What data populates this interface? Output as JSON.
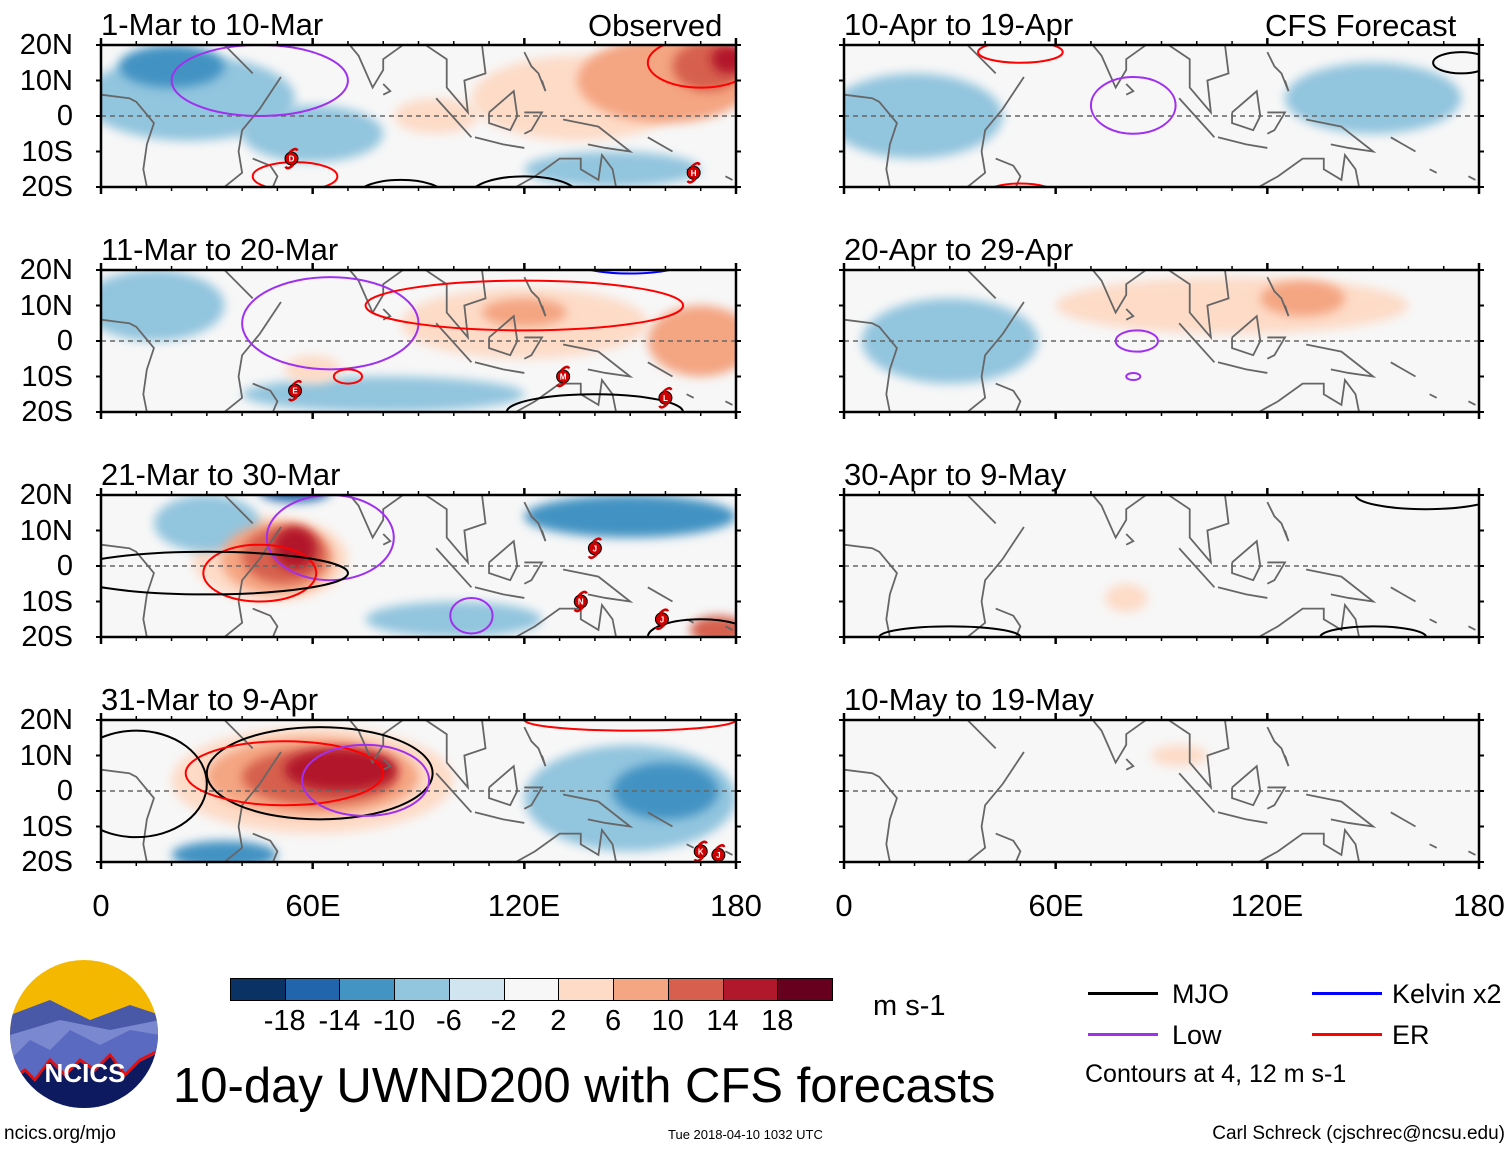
{
  "title": "10-day UWND200 with CFS forecasts",
  "url": "ncics.org/mjo",
  "timestamp": "Tue 2018-04-10 1032 UTC",
  "author": "Carl Schreck (cjschrec@ncsu.edu)",
  "logo_text": "NCICS",
  "observed_label": "Observed",
  "forecast_label": "CFS Forecast",
  "units": "m s-1",
  "contour_note": "Contours at 4, 12 m s-1",
  "colors": {
    "levels": [
      -18,
      -14,
      -10,
      -6,
      -2,
      2,
      6,
      10,
      14,
      18
    ],
    "fills": [
      "#0b3264",
      "#2166ac",
      "#4393c3",
      "#92c5de",
      "#d1e5f0",
      "#f7f7f7",
      "#fddbc7",
      "#f4a582",
      "#d6604d",
      "#b2182b",
      "#67001f"
    ],
    "mjo": "#000000",
    "low": "#a030f0",
    "er": "#ff0000",
    "kelvin": "#0000ff"
  },
  "colorbar_labels": [
    "-18",
    "-14",
    "-10",
    "-6",
    "-2",
    "2",
    "6",
    "10",
    "14",
    "18"
  ],
  "legend": [
    {
      "key": "mjo",
      "label": "MJO"
    },
    {
      "key": "kelvin",
      "label": "Kelvin x2"
    },
    {
      "key": "low",
      "label": "Low"
    },
    {
      "key": "er",
      "label": "ER"
    }
  ],
  "lat_labels": [
    "20N",
    "10N",
    "0",
    "10S",
    "20S"
  ],
  "lon_labels": [
    "0",
    "60E",
    "120E",
    "180"
  ],
  "chart_data": [
    {
      "type": "heatmap",
      "panel": "observed",
      "title": "1-Mar to 10-Mar",
      "anomalies": [
        [
          25,
          5,
          30,
          12,
          -6
        ],
        [
          20,
          14,
          15,
          6,
          -10
        ],
        [
          60,
          -5,
          20,
          8,
          -6
        ],
        [
          135,
          5,
          30,
          12,
          6
        ],
        [
          160,
          10,
          25,
          12,
          10
        ],
        [
          172,
          14,
          10,
          7,
          14
        ],
        [
          178,
          16,
          5,
          4,
          18
        ],
        [
          145,
          -15,
          25,
          5,
          -6
        ],
        [
          95,
          0,
          12,
          5,
          6
        ]
      ],
      "contours": [
        [
          "low",
          45,
          10,
          25,
          10
        ],
        [
          "er",
          170,
          15,
          15,
          7
        ],
        [
          "er",
          55,
          -17,
          12,
          4
        ],
        [
          "mjo",
          85,
          -22,
          12,
          4
        ],
        [
          "mjo",
          120,
          -22,
          15,
          5
        ]
      ],
      "storms": [
        [
          "D",
          54,
          -12
        ],
        [
          "H",
          168,
          -16
        ]
      ]
    },
    {
      "type": "heatmap",
      "panel": "observed",
      "title": "11-Mar to 20-Mar",
      "anomalies": [
        [
          15,
          10,
          20,
          10,
          -6
        ],
        [
          120,
          5,
          35,
          10,
          6
        ],
        [
          120,
          8,
          12,
          4,
          10
        ],
        [
          170,
          0,
          15,
          10,
          10
        ],
        [
          80,
          -15,
          40,
          5,
          -6
        ],
        [
          60,
          -8,
          8,
          4,
          6
        ]
      ],
      "contours": [
        [
          "low",
          65,
          5,
          25,
          13
        ],
        [
          "er",
          120,
          10,
          45,
          7
        ],
        [
          "er",
          70,
          -10,
          4,
          2
        ],
        [
          "kelvin",
          150,
          22,
          15,
          3
        ],
        [
          "mjo",
          140,
          -20,
          25,
          5
        ]
      ],
      "storms": [
        [
          "E",
          55,
          -14
        ],
        [
          "M",
          131,
          -10
        ],
        [
          "L",
          160,
          -16
        ]
      ]
    },
    {
      "type": "heatmap",
      "panel": "observed",
      "title": "21-Mar to 30-Mar",
      "anomalies": [
        [
          48,
          2,
          22,
          12,
          6
        ],
        [
          50,
          2,
          16,
          10,
          10
        ],
        [
          52,
          3,
          12,
          8,
          14
        ],
        [
          55,
          5,
          6,
          6,
          18
        ],
        [
          30,
          12,
          15,
          8,
          -6
        ],
        [
          55,
          21,
          10,
          3,
          -14
        ],
        [
          150,
          14,
          30,
          6,
          -10
        ],
        [
          100,
          -15,
          25,
          5,
          -6
        ],
        [
          175,
          -18,
          8,
          4,
          14
        ]
      ],
      "contours": [
        [
          "low",
          65,
          8,
          18,
          12
        ],
        [
          "er",
          45,
          -2,
          16,
          8
        ],
        [
          "mjo",
          30,
          -2,
          40,
          6
        ],
        [
          "low",
          105,
          -14,
          6,
          5
        ],
        [
          "mjo",
          170,
          -20,
          15,
          5
        ]
      ],
      "storms": [
        [
          "J",
          140,
          5
        ],
        [
          "N",
          136,
          -10
        ],
        [
          "J",
          159,
          -15
        ]
      ]
    },
    {
      "type": "heatmap",
      "panel": "observed",
      "title": "31-Mar to 9-Apr",
      "anomalies": [
        [
          60,
          3,
          40,
          15,
          6
        ],
        [
          60,
          4,
          30,
          11,
          10
        ],
        [
          62,
          4,
          22,
          8,
          14
        ],
        [
          68,
          6,
          16,
          6,
          18
        ],
        [
          150,
          -2,
          30,
          15,
          -6
        ],
        [
          160,
          0,
          15,
          8,
          -10
        ],
        [
          35,
          -18,
          15,
          4,
          -10
        ]
      ],
      "contours": [
        [
          "mjo",
          62,
          5,
          32,
          13
        ],
        [
          "er",
          52,
          5,
          28,
          9
        ],
        [
          "low",
          75,
          3,
          18,
          10
        ],
        [
          "mjo",
          10,
          2,
          20,
          15
        ],
        [
          "er",
          150,
          20,
          30,
          3
        ]
      ],
      "storms": [
        [
          "K",
          170,
          -17
        ],
        [
          "J",
          175,
          -18
        ]
      ]
    },
    {
      "type": "heatmap",
      "panel": "forecast",
      "title": "10-Apr to 19-Apr",
      "anomalies": [
        [
          20,
          0,
          25,
          12,
          -6
        ],
        [
          130,
          -5,
          40,
          8,
          2
        ],
        [
          150,
          5,
          25,
          10,
          -6
        ],
        [
          50,
          -15,
          25,
          5,
          2
        ]
      ],
      "contours": [
        [
          "low",
          82,
          3,
          12,
          8
        ],
        [
          "er",
          50,
          18,
          12,
          3
        ],
        [
          "er",
          50,
          -22,
          10,
          3
        ],
        [
          "mjo",
          175,
          15,
          8,
          3
        ]
      ],
      "storms": []
    },
    {
      "type": "heatmap",
      "panel": "forecast",
      "title": "20-Apr to 29-Apr",
      "anomalies": [
        [
          110,
          10,
          50,
          8,
          6
        ],
        [
          130,
          12,
          12,
          5,
          10
        ],
        [
          80,
          -3,
          30,
          10,
          2
        ],
        [
          30,
          0,
          25,
          12,
          -6
        ]
      ],
      "contours": [
        [
          "low",
          83,
          0,
          6,
          3
        ],
        [
          "low",
          82,
          -10,
          2,
          1
        ]
      ],
      "storms": []
    },
    {
      "type": "heatmap",
      "panel": "forecast",
      "title": "30-Apr to 9-May",
      "anomalies": [
        [
          90,
          0,
          60,
          15,
          2
        ],
        [
          80,
          -9,
          6,
          4,
          6
        ],
        [
          150,
          10,
          25,
          8,
          2
        ]
      ],
      "contours": [
        [
          "mjo",
          165,
          20,
          20,
          4
        ],
        [
          "mjo",
          30,
          -20,
          20,
          3
        ],
        [
          "mjo",
          150,
          -20,
          15,
          3
        ]
      ],
      "storms": []
    },
    {
      "type": "heatmap",
      "panel": "forecast",
      "title": "10-May to 19-May",
      "anomalies": [
        [
          90,
          0,
          45,
          12,
          2
        ],
        [
          95,
          10,
          8,
          3,
          6
        ],
        [
          150,
          12,
          20,
          6,
          2
        ]
      ],
      "contours": [],
      "storms": []
    }
  ]
}
